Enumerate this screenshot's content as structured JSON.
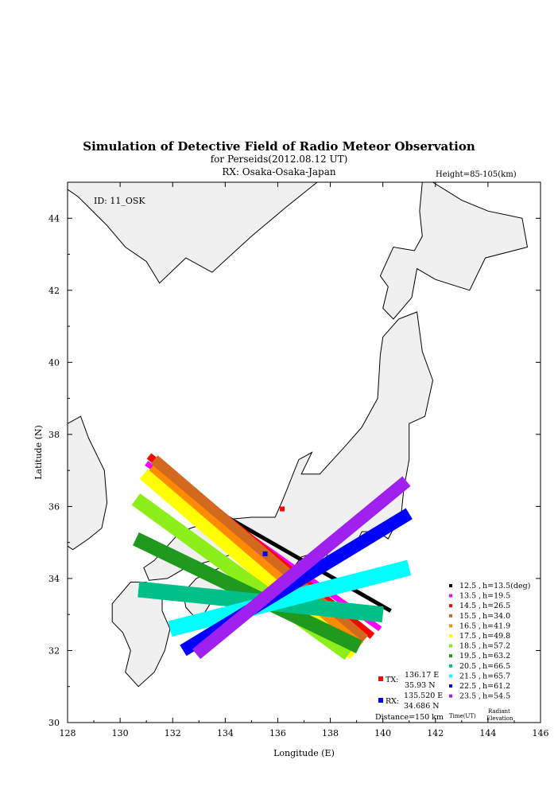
{
  "chart_data": {
    "type": "map",
    "title": "Simulation of Detective Field of Radio Meteor Observation",
    "subtitle": "for Perseids(2012.08.12 UT)",
    "receiver_line": "RX: Osaka-Osaka-Japan",
    "height_label": "Height=85-105(km)",
    "id_label": "ID: 11_OSK",
    "xlabel": "Longitude (E)",
    "ylabel": "Latitude (N)",
    "xlim": [
      128,
      146
    ],
    "ylim": [
      30,
      45
    ],
    "xticks": [
      128,
      130,
      132,
      134,
      136,
      138,
      140,
      142,
      144,
      146
    ],
    "yticks": [
      30,
      32,
      34,
      36,
      38,
      40,
      42,
      44
    ],
    "tx": {
      "label": "TX:",
      "lon_text": "136.17 E",
      "lat_text": "35.93 N",
      "lon": 136.17,
      "lat": 35.93,
      "color": "#ff0000"
    },
    "rx": {
      "label": "RX:",
      "lon_text": "135.520 E",
      "lat_text": "34.686 N",
      "lon": 135.52,
      "lat": 34.686,
      "color": "#0000ff"
    },
    "distance_label": "Distance=150 km",
    "time_header": "Time(UT)",
    "radiant_header": "Radiant Elevation",
    "series": [
      {
        "time": "12.5",
        "h": "h=13.5(deg)",
        "color": "#000000",
        "start": [
          131.2,
          36.9
        ],
        "end": [
          140.3,
          33.1
        ],
        "width": 5
      },
      {
        "time": "13.5",
        "h": "h=19.5",
        "color": "#ff00ff",
        "start": [
          131.0,
          37.2
        ],
        "end": [
          139.9,
          32.6
        ],
        "width": 7
      },
      {
        "time": "14.5",
        "h": "h=26.5",
        "color": "#ff0000",
        "start": [
          131.1,
          37.4
        ],
        "end": [
          139.6,
          32.4
        ],
        "width": 9
      },
      {
        "time": "15.5",
        "h": "h=34.0",
        "color": "#d2691e",
        "start": [
          131.3,
          37.3
        ],
        "end": [
          139.3,
          32.3
        ],
        "width": 14
      },
      {
        "time": "16.5",
        "h": "h=41.9",
        "color": "#ff8c00",
        "start": [
          131.1,
          37.0
        ],
        "end": [
          139.1,
          32.1
        ],
        "width": 16
      },
      {
        "time": "17.5",
        "h": "h=49.8",
        "color": "#ffff00",
        "start": [
          130.9,
          36.9
        ],
        "end": [
          138.9,
          31.9
        ],
        "width": 16
      },
      {
        "time": "18.5",
        "h": "h=57.2",
        "color": "#8cef1a",
        "start": [
          130.6,
          36.2
        ],
        "end": [
          138.7,
          31.9
        ],
        "width": 18
      },
      {
        "time": "19.5",
        "h": "h=63.2",
        "color": "#1f9a1f",
        "start": [
          130.6,
          35.1
        ],
        "end": [
          139.1,
          32.1
        ],
        "width": 18
      },
      {
        "time": "20.5",
        "h": "h=66.5",
        "color": "#00c08a",
        "start": [
          130.7,
          33.7
        ],
        "end": [
          140.0,
          33.0
        ],
        "width": 20
      },
      {
        "time": "21.5",
        "h": "h=65.7",
        "color": "#00ffff",
        "start": [
          131.9,
          32.6
        ],
        "end": [
          141.0,
          34.3
        ],
        "width": 20
      },
      {
        "time": "22.5",
        "h": "h=61.2",
        "color": "#0000ff",
        "start": [
          132.4,
          32.0
        ],
        "end": [
          141.0,
          35.8
        ],
        "width": 16
      },
      {
        "time": "23.5",
        "h": "h=54.5",
        "color": "#a020f0",
        "start": [
          132.9,
          31.9
        ],
        "end": [
          140.9,
          36.7
        ],
        "width": 16
      }
    ]
  }
}
